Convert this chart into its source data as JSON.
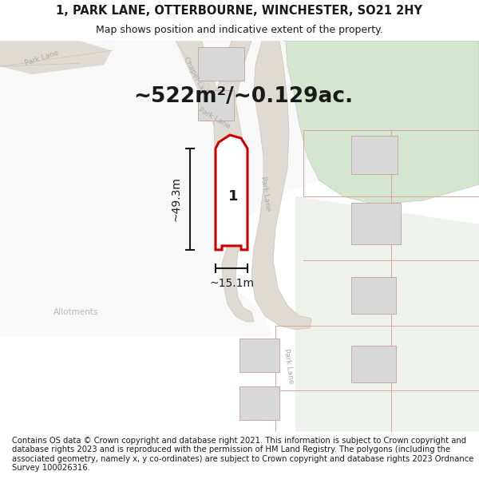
{
  "title_line1": "1, PARK LANE, OTTERBOURNE, WINCHESTER, SO21 2HY",
  "title_line2": "Map shows position and indicative extent of the property.",
  "area_text": "~522m²/~0.129ac.",
  "dim_height": "~49.3m",
  "dim_width": "~15.1m",
  "label_number": "1",
  "label_allotments": "Allotments",
  "footer_text": "Contains OS data © Crown copyright and database right 2021. This information is subject to Crown copyright and database rights 2023 and is reproduced with the permission of HM Land Registry. The polygons (including the associated geometry, namely x, y co-ordinates) are subject to Crown copyright and database rights 2023 Ordnance Survey 100026316.",
  "bg_map_color": "#edf2ed",
  "road_color": "#e0dbd2",
  "road_edge": "#ccc8bc",
  "white_area": "#f8f8f8",
  "green_color": "#d4e6d0",
  "green_edge": "#c0d4bc",
  "property_fill": "#ffffff",
  "property_outline": "#cc0000",
  "building_fill": "#d8d8d8",
  "building_outline": "#c8a8a8",
  "road_label_color": "#aaaaaa",
  "text_color": "#1a1a1a",
  "dim_color": "#1a1a1a",
  "pink_line": "#e0a0a0",
  "title_fontsize": 10.5,
  "subtitle_fontsize": 9,
  "area_fontsize": 19,
  "prop_label_fontsize": 13,
  "footer_fontsize": 7.2,
  "road_label_fontsize": 6.5
}
